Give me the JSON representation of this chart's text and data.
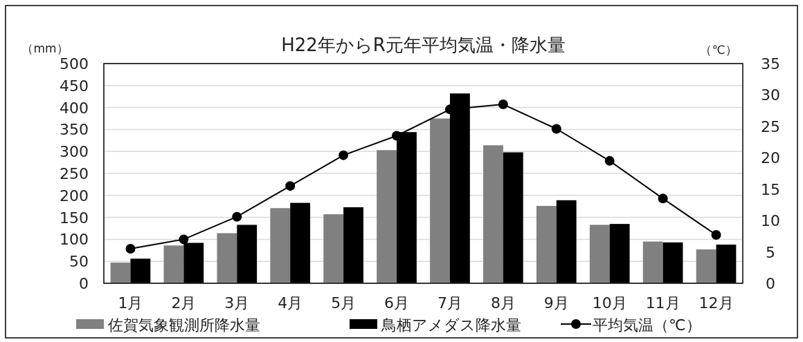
{
  "chart_data": {
    "type": "bar",
    "title": "H22年からR元年平均気温・降水量",
    "ylabel": "（mm）",
    "y2label": "（℃）",
    "categories": [
      "1月",
      "2月",
      "3月",
      "4月",
      "5月",
      "6月",
      "7月",
      "8月",
      "9月",
      "10月",
      "11月",
      "12月"
    ],
    "series": [
      {
        "name": "佐賀気象観測所降水量",
        "color": "#808080",
        "values": [
          47,
          86,
          114,
          171,
          157,
          303,
          375,
          314,
          176,
          133,
          95,
          77
        ]
      },
      {
        "name": "鳥栖アメダス降水量",
        "color": "#000000",
        "values": [
          56,
          92,
          133,
          183,
          173,
          344,
          432,
          298,
          189,
          135,
          93,
          88
        ]
      },
      {
        "name": "平均気温（℃）",
        "type": "line",
        "axis": "y2",
        "color": "#000000",
        "marker": "circle",
        "values": [
          5.5,
          7.0,
          10.6,
          15.5,
          20.4,
          23.5,
          27.7,
          28.5,
          24.6,
          19.5,
          13.5,
          7.7
        ]
      }
    ],
    "ylim": [
      0,
      500
    ],
    "yticks": [
      0,
      50,
      100,
      150,
      200,
      250,
      300,
      350,
      400,
      450,
      500
    ],
    "y2lim": [
      0,
      35
    ],
    "y2ticks": [
      0,
      5,
      10,
      15,
      20,
      25,
      30,
      35
    ],
    "grid": "y",
    "legend": "bottom"
  }
}
